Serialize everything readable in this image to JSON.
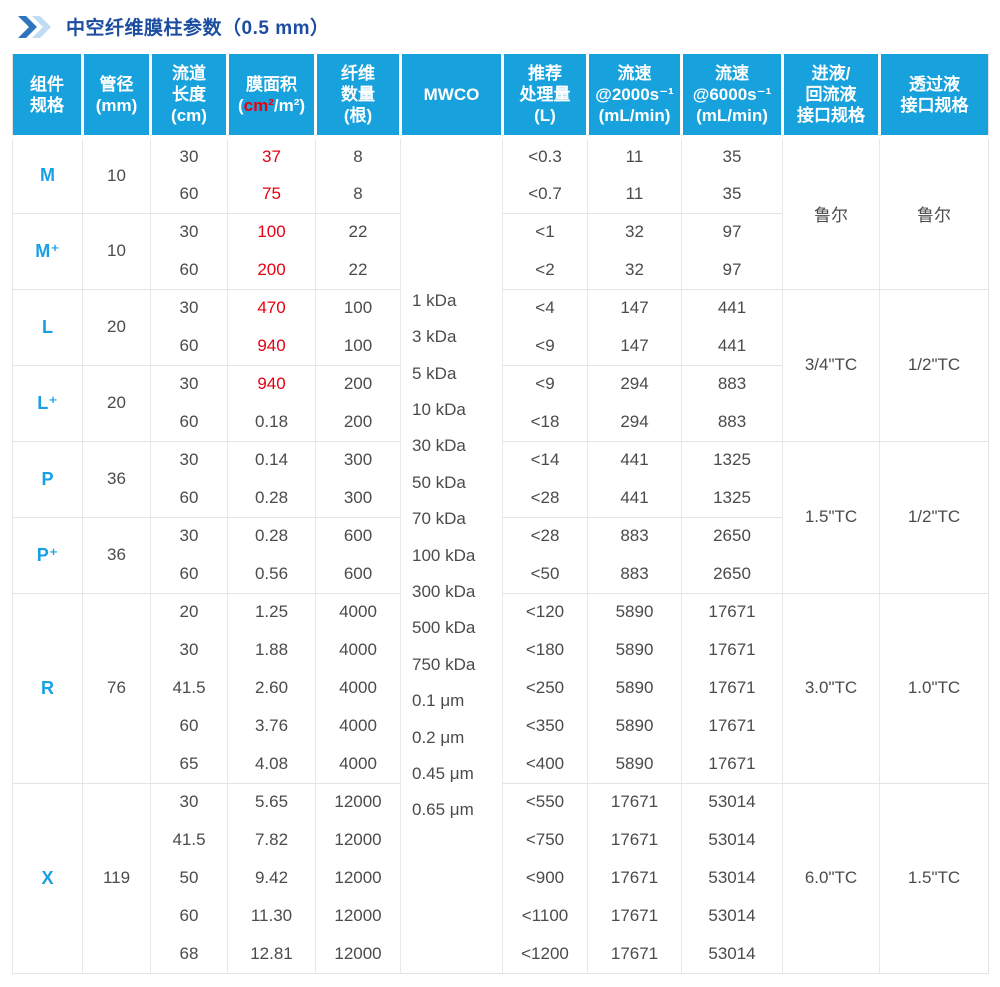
{
  "page": {
    "title": "中空纤维膜柱参数（0.5 mm）"
  },
  "colors": {
    "header_bg": "#18a2dd",
    "title_text": "#1c4da1",
    "spec_text": "#18a0e5",
    "highlight_red": "#e60012",
    "body_text": "#4b4b4b",
    "border": "#e4e4e4",
    "chevron_dark": "#2e74bf",
    "chevron_light": "#bfdcf4"
  },
  "table": {
    "headers": {
      "spec": "组件\n规格",
      "diameter": "管径\n(mm)",
      "length": "流道\n长度\n(cm)",
      "area_line1": "膜面积",
      "area_open": "(",
      "area_red": "cm²",
      "area_rest": "/m²)",
      "fibers": "纤维\n数量\n(根)",
      "mwco": "MWCO",
      "volume": "推荐\n处理量\n(L)",
      "flow2000": "流速\n@2000s⁻¹\n(mL/min)",
      "flow6000": "流速\n@6000s⁻¹\n(mL/min)",
      "inlet": "进液/\n回流液\n接口规格",
      "permeate": "透过液\n接口规格"
    },
    "mwco_values": [
      "1 kDa",
      "3 kDa",
      "5 kDa",
      "10 kDa",
      "30 kDa",
      "50 kDa",
      "70 kDa",
      "100 kDa",
      "300 kDa",
      "500 kDa",
      "750 kDa",
      "0.1 μm",
      "0.2 μm",
      "0.45 μm",
      "0.65 μm"
    ],
    "groups": [
      {
        "spec": "M",
        "diameter": "10",
        "rows": [
          {
            "length": "30",
            "area": "37",
            "area_red": true,
            "fibers": "8",
            "volume": "<0.3",
            "flow2000": "11",
            "flow6000": "35"
          },
          {
            "length": "60",
            "area": "75",
            "area_red": true,
            "fibers": "8",
            "volume": "<0.7",
            "flow2000": "11",
            "flow6000": "35"
          }
        ]
      },
      {
        "spec": "M⁺",
        "diameter": "10",
        "rows": [
          {
            "length": "30",
            "area": "100",
            "area_red": true,
            "fibers": "22",
            "volume": "<1",
            "flow2000": "32",
            "flow6000": "97"
          },
          {
            "length": "60",
            "area": "200",
            "area_red": true,
            "fibers": "22",
            "volume": "<2",
            "flow2000": "32",
            "flow6000": "97"
          }
        ]
      },
      {
        "spec": "L",
        "diameter": "20",
        "rows": [
          {
            "length": "30",
            "area": "470",
            "area_red": true,
            "fibers": "100",
            "volume": "<4",
            "flow2000": "147",
            "flow6000": "441"
          },
          {
            "length": "60",
            "area": "940",
            "area_red": true,
            "fibers": "100",
            "volume": "<9",
            "flow2000": "147",
            "flow6000": "441"
          }
        ]
      },
      {
        "spec": "L⁺",
        "diameter": "20",
        "rows": [
          {
            "length": "30",
            "area": "940",
            "area_red": true,
            "fibers": "200",
            "volume": "<9",
            "flow2000": "294",
            "flow6000": "883"
          },
          {
            "length": "60",
            "area": "0.18",
            "area_red": false,
            "fibers": "200",
            "volume": "<18",
            "flow2000": "294",
            "flow6000": "883"
          }
        ]
      },
      {
        "spec": "P",
        "diameter": "36",
        "rows": [
          {
            "length": "30",
            "area": "0.14",
            "area_red": false,
            "fibers": "300",
            "volume": "<14",
            "flow2000": "441",
            "flow6000": "1325"
          },
          {
            "length": "60",
            "area": "0.28",
            "area_red": false,
            "fibers": "300",
            "volume": "<28",
            "flow2000": "441",
            "flow6000": "1325"
          }
        ]
      },
      {
        "spec": "P⁺",
        "diameter": "36",
        "rows": [
          {
            "length": "30",
            "area": "0.28",
            "area_red": false,
            "fibers": "600",
            "volume": "<28",
            "flow2000": "883",
            "flow6000": "2650"
          },
          {
            "length": "60",
            "area": "0.56",
            "area_red": false,
            "fibers": "600",
            "volume": "<50",
            "flow2000": "883",
            "flow6000": "2650"
          }
        ]
      },
      {
        "spec": "R",
        "diameter": "76",
        "rows": [
          {
            "length": "20",
            "area": "1.25",
            "area_red": false,
            "fibers": "4000",
            "volume": "<120",
            "flow2000": "5890",
            "flow6000": "17671"
          },
          {
            "length": "30",
            "area": "1.88",
            "area_red": false,
            "fibers": "4000",
            "volume": "<180",
            "flow2000": "5890",
            "flow6000": "17671"
          },
          {
            "length": "41.5",
            "area": "2.60",
            "area_red": false,
            "fibers": "4000",
            "volume": "<250",
            "flow2000": "5890",
            "flow6000": "17671"
          },
          {
            "length": "60",
            "area": "3.76",
            "area_red": false,
            "fibers": "4000",
            "volume": "<350",
            "flow2000": "5890",
            "flow6000": "17671"
          },
          {
            "length": "65",
            "area": "4.08",
            "area_red": false,
            "fibers": "4000",
            "volume": "<400",
            "flow2000": "5890",
            "flow6000": "17671"
          }
        ]
      },
      {
        "spec": "X",
        "diameter": "119",
        "rows": [
          {
            "length": "30",
            "area": "5.65",
            "area_red": false,
            "fibers": "12000",
            "volume": "<550",
            "flow2000": "17671",
            "flow6000": "53014"
          },
          {
            "length": "41.5",
            "area": "7.82",
            "area_red": false,
            "fibers": "12000",
            "volume": "<750",
            "flow2000": "17671",
            "flow6000": "53014"
          },
          {
            "length": "50",
            "area": "9.42",
            "area_red": false,
            "fibers": "12000",
            "volume": "<900",
            "flow2000": "17671",
            "flow6000": "53014"
          },
          {
            "length": "60",
            "area": "11.30",
            "area_red": false,
            "fibers": "12000",
            "volume": "<1100",
            "flow2000": "17671",
            "flow6000": "53014"
          },
          {
            "length": "68",
            "area": "12.81",
            "area_red": false,
            "fibers": "12000",
            "volume": "<1200",
            "flow2000": "17671",
            "flow6000": "53014"
          }
        ]
      }
    ],
    "interface_merges": [
      {
        "span_groups": [
          0,
          1
        ],
        "inlet": "鲁尔",
        "permeate": "鲁尔"
      },
      {
        "span_groups": [
          2,
          3
        ],
        "inlet": "3/4\"TC",
        "permeate": "1/2\"TC"
      },
      {
        "span_groups": [
          4,
          5
        ],
        "inlet": "1.5\"TC",
        "permeate": "1/2\"TC"
      },
      {
        "span_groups": [
          6
        ],
        "inlet": "3.0\"TC",
        "permeate": "1.0\"TC"
      },
      {
        "span_groups": [
          7
        ],
        "inlet": "6.0\"TC",
        "permeate": "1.5\"TC"
      }
    ]
  }
}
